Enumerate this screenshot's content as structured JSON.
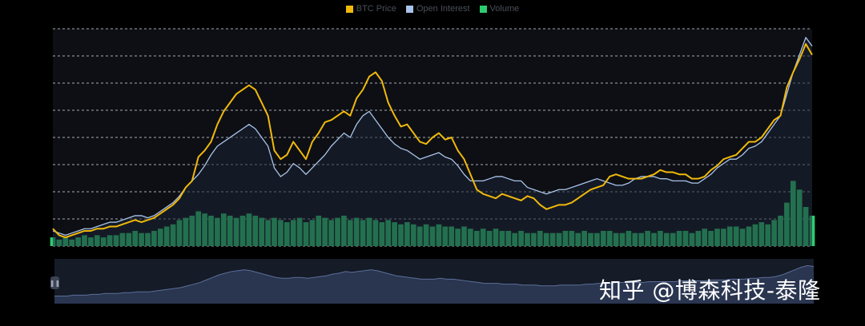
{
  "legend": [
    {
      "label": "BTC Price",
      "color": "#f0b90b"
    },
    {
      "label": "Open Interest",
      "color": "#a9c4eb"
    },
    {
      "label": "Volume",
      "color": "#2ecc71"
    }
  ],
  "watermark": "知乎 @博森科技-泰隆",
  "colors": {
    "background": "#000000",
    "plot_bg": "#0d0f14",
    "gridline": "#cfd3da",
    "price": "#f0b90b",
    "open_interest": "#a9c4eb",
    "volume": "#2ecc71",
    "navigator_fill": "#2a3550",
    "navigator_line": "#5a6f99"
  },
  "chart_data": {
    "type": "line",
    "grid": true,
    "legend_position": "top-center",
    "ylim": [
      0,
      100
    ],
    "x": [
      0,
      1,
      2,
      3,
      4,
      5,
      6,
      7,
      8,
      9,
      10,
      11,
      12,
      13,
      14,
      15,
      16,
      17,
      18,
      19,
      20,
      21,
      22,
      23,
      24,
      25,
      26,
      27,
      28,
      29,
      30,
      31,
      32,
      33,
      34,
      35,
      36,
      37,
      38,
      39,
      40,
      41,
      42,
      43,
      44,
      45,
      46,
      47,
      48,
      49,
      50,
      51,
      52,
      53,
      54,
      55,
      56,
      57,
      58,
      59,
      60,
      61,
      62,
      63,
      64,
      65,
      66,
      67,
      68,
      69,
      70,
      71,
      72,
      73,
      74,
      75,
      76,
      77,
      78,
      79,
      80,
      81,
      82,
      83,
      84,
      85,
      86,
      87,
      88,
      89,
      90,
      91,
      92,
      93,
      94,
      95,
      96,
      97,
      98,
      99,
      100,
      101,
      102,
      103,
      104,
      105,
      106,
      107,
      108,
      109,
      110,
      111,
      112,
      113,
      114,
      115,
      116,
      117,
      118,
      119,
      120
    ],
    "series": [
      {
        "name": "BTC Price",
        "type": "line",
        "values": [
          8,
          5,
          4,
          5,
          6,
          7,
          7,
          8,
          8,
          9,
          9,
          10,
          11,
          12,
          11,
          12,
          13,
          15,
          17,
          19,
          22,
          27,
          30,
          41,
          44,
          48,
          56,
          62,
          66,
          70,
          72,
          74,
          72,
          66,
          60,
          44,
          40,
          42,
          48,
          44,
          40,
          48,
          52,
          57,
          58,
          60,
          62,
          60,
          68,
          72,
          78,
          80,
          76,
          66,
          60,
          55,
          56,
          52,
          48,
          47,
          50,
          52,
          49,
          50,
          44,
          40,
          33,
          26,
          24,
          23,
          22,
          24,
          23,
          22,
          21,
          23,
          22,
          19,
          17,
          18,
          19,
          19,
          20,
          22,
          24,
          26,
          27,
          28,
          32,
          33,
          32,
          31,
          31,
          31,
          32,
          33,
          35,
          34,
          34,
          33,
          33,
          31,
          31,
          32,
          35,
          37,
          40,
          41,
          42,
          45,
          48,
          48,
          50,
          54,
          58,
          60,
          73,
          80,
          86,
          93,
          88
        ]
      },
      {
        "name": "Open Interest",
        "type": "line",
        "values": [
          7,
          6,
          5,
          6,
          7,
          8,
          8,
          9,
          10,
          11,
          11,
          12,
          13,
          14,
          14,
          13,
          14,
          16,
          18,
          20,
          23,
          27,
          30,
          33,
          37,
          42,
          46,
          48,
          50,
          52,
          54,
          56,
          54,
          50,
          46,
          36,
          32,
          34,
          38,
          36,
          33,
          36,
          39,
          42,
          46,
          49,
          52,
          50,
          56,
          60,
          62,
          58,
          54,
          50,
          47,
          45,
          44,
          42,
          40,
          41,
          42,
          43,
          41,
          40,
          37,
          33,
          30,
          30,
          30,
          31,
          32,
          32,
          31,
          30,
          30,
          27,
          26,
          25,
          24,
          25,
          26,
          26,
          27,
          28,
          29,
          30,
          31,
          30,
          29,
          28,
          28,
          29,
          31,
          32,
          32,
          32,
          31,
          31,
          30,
          30,
          30,
          29,
          29,
          31,
          33,
          36,
          38,
          40,
          40,
          42,
          45,
          46,
          48,
          52,
          56,
          60,
          70,
          80,
          88,
          96,
          92
        ]
      },
      {
        "name": "Volume",
        "type": "bar",
        "values": [
          4,
          3,
          4,
          3,
          4,
          5,
          4,
          5,
          4,
          5,
          5,
          6,
          6,
          7,
          6,
          6,
          7,
          8,
          9,
          10,
          12,
          13,
          14,
          16,
          15,
          14,
          13,
          15,
          14,
          13,
          14,
          15,
          14,
          13,
          12,
          13,
          12,
          11,
          12,
          13,
          11,
          12,
          14,
          13,
          12,
          13,
          14,
          12,
          13,
          12,
          13,
          12,
          11,
          12,
          11,
          10,
          11,
          10,
          9,
          10,
          9,
          10,
          9,
          9,
          8,
          9,
          8,
          7,
          8,
          7,
          8,
          7,
          7,
          6,
          7,
          6,
          6,
          7,
          6,
          6,
          6,
          7,
          7,
          6,
          7,
          6,
          6,
          7,
          7,
          6,
          6,
          7,
          6,
          6,
          7,
          6,
          7,
          6,
          6,
          7,
          7,
          6,
          7,
          8,
          7,
          8,
          8,
          9,
          9,
          8,
          9,
          10,
          11,
          10,
          12,
          14,
          20,
          30,
          26,
          18,
          14
        ]
      }
    ],
    "navigator": {
      "values": [
        9,
        9,
        9,
        10,
        10,
        10,
        11,
        11,
        12,
        12,
        12,
        13,
        13,
        14,
        14,
        14,
        15,
        16,
        17,
        18,
        19,
        21,
        23,
        25,
        28,
        31,
        34,
        36,
        38,
        39,
        40,
        39,
        37,
        35,
        33,
        31,
        30,
        30,
        31,
        31,
        30,
        31,
        32,
        33,
        35,
        36,
        38,
        37,
        38,
        39,
        40,
        39,
        37,
        35,
        33,
        32,
        31,
        30,
        29,
        29,
        29,
        30,
        29,
        29,
        28,
        27,
        26,
        25,
        24,
        24,
        24,
        23,
        23,
        23,
        22,
        22,
        22,
        21,
        21,
        21,
        22,
        22,
        22,
        22,
        23,
        23,
        24,
        24,
        24,
        25,
        25,
        25,
        25,
        25,
        26,
        26,
        26,
        26,
        26,
        27,
        27,
        27,
        27,
        27,
        28,
        28,
        28,
        29,
        29,
        29,
        30,
        30,
        31,
        31,
        32,
        34,
        37,
        40,
        43,
        45,
        44
      ]
    }
  }
}
